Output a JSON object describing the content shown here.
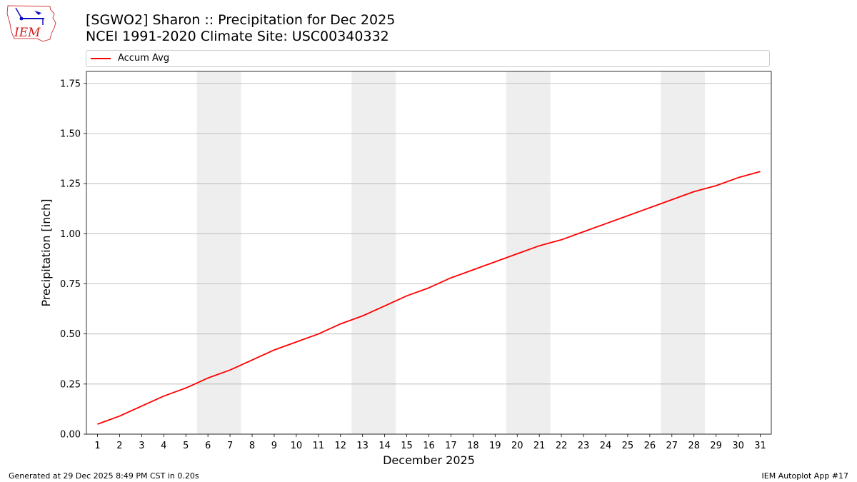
{
  "title_line1": "[SGWO2] Sharon :: Precipitation for Dec 2025",
  "title_line2": "NCEI 1991-2020 Climate Site: USC00340332",
  "logo_text": "IEM",
  "footer_left": "Generated at 29 Dec 2025 8:49 PM CST in 0.20s",
  "footer_right": "IEM Autoplot App #17",
  "colors": {
    "line": "#ff0000",
    "weekend_band": "#eeeeee",
    "grid": "#b0b0b0"
  },
  "chart_data": {
    "type": "line",
    "xlabel": "December 2025",
    "ylabel": "Precipitation [inch]",
    "x": [
      1,
      2,
      3,
      4,
      5,
      6,
      7,
      8,
      9,
      10,
      11,
      12,
      13,
      14,
      15,
      16,
      17,
      18,
      19,
      20,
      21,
      22,
      23,
      24,
      25,
      26,
      27,
      28,
      29,
      30,
      31
    ],
    "xlim": [
      0.5,
      31.5
    ],
    "ylim": [
      0,
      1.81
    ],
    "yticks": [
      0.0,
      0.25,
      0.5,
      0.75,
      1.0,
      1.25,
      1.5,
      1.75
    ],
    "ytick_labels": [
      "0.00",
      "0.25",
      "0.50",
      "0.75",
      "1.00",
      "1.25",
      "1.50",
      "1.75"
    ],
    "grid": "y",
    "legend": "top",
    "weekend_bands": [
      [
        5.5,
        7.5
      ],
      [
        12.5,
        14.5
      ],
      [
        19.5,
        21.5
      ],
      [
        26.5,
        28.5
      ]
    ],
    "series": [
      {
        "name": "Accum Avg",
        "values": [
          0.05,
          0.09,
          0.14,
          0.19,
          0.23,
          0.28,
          0.32,
          0.37,
          0.42,
          0.46,
          0.5,
          0.55,
          0.59,
          0.64,
          0.69,
          0.73,
          0.78,
          0.82,
          0.86,
          0.9,
          0.94,
          0.97,
          1.01,
          1.05,
          1.09,
          1.13,
          1.17,
          1.21,
          1.24,
          1.28,
          1.31
        ]
      }
    ]
  }
}
